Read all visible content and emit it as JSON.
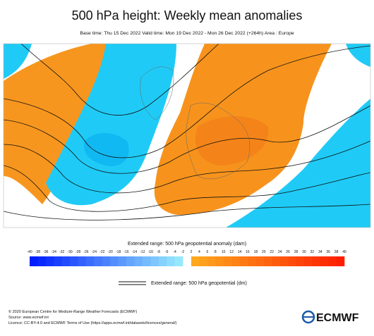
{
  "header": {
    "title": "500 hPa height: Weekly mean anomalies",
    "subtitle": "Base time: Thu 15 Dec 2022 Valid time: Mon 19 Dec 2022 - Mon 26 Dec 2022 (+264h) Area : Europe"
  },
  "colorbar": {
    "label": "Extended range: 500 hPa geopotential anomaly (dam)",
    "ticks": [
      -40,
      -38,
      -36,
      -34,
      -32,
      -30,
      -28,
      -26,
      -24,
      -22,
      -20,
      -18,
      -16,
      -14,
      -12,
      -10,
      -8,
      -6,
      -4,
      -2,
      2,
      4,
      6,
      8,
      10,
      12,
      14,
      16,
      18,
      20,
      22,
      24,
      26,
      28,
      30,
      32,
      34,
      36,
      38,
      40
    ]
  },
  "legend": {
    "label": "Extended range: 500 hPa geopotential (dm)"
  },
  "footer": {
    "lines": [
      "© 2020 European Centre for Medium-Range Weather Forecasts (ECMWF)",
      "Source: www.ecmwf.int",
      "Licence: CC-BY-4.0 and ECMWF Terms of Use (https://apps.ecmwf.int/datasets/licences/general/)"
    ]
  },
  "logo": {
    "text": "ECMWF"
  }
}
